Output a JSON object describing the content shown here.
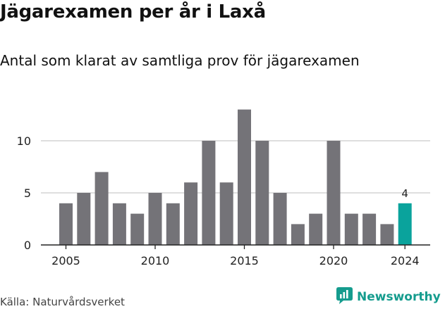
{
  "title": "Jägarexamen per år i Laxå",
  "subtitle": "Antal som klarat av samtliga prov för jägarexamen",
  "source": "Källa: Naturvårdsverket",
  "brand": {
    "name": "Newsworthy",
    "icon": "newsworthy-logo-icon"
  },
  "colors": {
    "bar": "#747378",
    "highlight": "#0aa39c",
    "grid": "#d4d4d4",
    "axis": "#222222",
    "text": "#222222",
    "brand": "#159c8e"
  },
  "chart_data": {
    "type": "bar",
    "categories": [
      "2005",
      "2006",
      "2007",
      "2008",
      "2009",
      "2010",
      "2011",
      "2012",
      "2013",
      "2014",
      "2015",
      "2016",
      "2017",
      "2018",
      "2019",
      "2020",
      "2021",
      "2022",
      "2023",
      "2024"
    ],
    "values": [
      4,
      5,
      7,
      4,
      3,
      5,
      4,
      6,
      10,
      6,
      13,
      10,
      5,
      2,
      3,
      10,
      3,
      3,
      2,
      4
    ],
    "highlight_index": 19,
    "data_labels": [
      {
        "category": "2024",
        "text": "4"
      }
    ],
    "x_ticks": [
      "2005",
      "2010",
      "2015",
      "2020",
      "2024"
    ],
    "y_ticks": [
      0,
      5,
      10
    ],
    "ylim": [
      0,
      13
    ],
    "grid": true,
    "title": "Jägarexamen per år i Laxå",
    "xlabel": "",
    "ylabel": ""
  }
}
